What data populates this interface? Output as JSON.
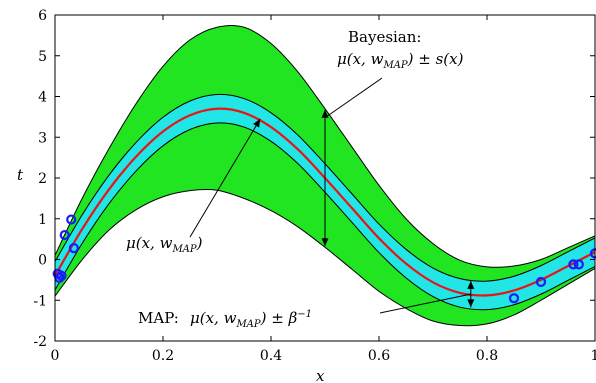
{
  "chart_data": {
    "type": "line",
    "xlabel": "x",
    "ylabel": "t",
    "xlim": [
      0,
      1
    ],
    "ylim": [
      -2,
      6
    ],
    "xticks": [
      0,
      0.2,
      0.4,
      0.6,
      0.8,
      1
    ],
    "xtick_labels": [
      "0",
      "0.2",
      "0.4",
      "0.6",
      "0.8",
      "1"
    ],
    "yticks": [
      -2,
      -1,
      0,
      1,
      2,
      3,
      4,
      5,
      6
    ],
    "ytick_labels": [
      "-2",
      "-1",
      "0",
      "1",
      "2",
      "3",
      "4",
      "5",
      "6"
    ],
    "grid": false,
    "mean_curve": {
      "x": [
        0,
        0.05,
        0.1,
        0.15,
        0.2,
        0.25,
        0.3,
        0.35,
        0.4,
        0.45,
        0.5,
        0.55,
        0.6,
        0.65,
        0.7,
        0.75,
        0.8,
        0.85,
        0.9,
        0.95,
        1
      ],
      "y": [
        -0.4,
        0.74,
        1.72,
        2.52,
        3.14,
        3.54,
        3.7,
        3.6,
        3.25,
        2.7,
        2.0,
        1.26,
        0.52,
        -0.1,
        -0.56,
        -0.82,
        -0.88,
        -0.76,
        -0.5,
        -0.16,
        0.18
      ]
    },
    "map_band_halfwidth": 0.35,
    "bayesian_band_halfwidth": [
      0.5,
      0.75,
      1.0,
      1.3,
      1.6,
      1.85,
      2.0,
      2.1,
      2.05,
      1.9,
      1.7,
      1.5,
      1.3,
      1.1,
      0.95,
      0.8,
      0.7,
      0.6,
      0.5,
      0.45,
      0.4
    ],
    "data_points": {
      "x": [
        0.005,
        0.008,
        0.012,
        0.018,
        0.03,
        0.035,
        0.85,
        0.9,
        0.96,
        0.97,
        1.0
      ],
      "y": [
        -0.35,
        -0.45,
        -0.4,
        0.6,
        0.98,
        0.28,
        -0.95,
        -0.55,
        -0.12,
        -0.12,
        0.15
      ]
    },
    "colors": {
      "bayesian_band": "#22e522",
      "map_band": "#22e5e5",
      "mean_line": "#e8141a",
      "band_edge": "#000000",
      "data_points": "#1a1aff"
    },
    "annotations": {
      "bayesian_title": "Bayesian:",
      "bayesian_formula": "μ(x, w_MAP) ± s(x)",
      "mean_label": "μ(x, w_MAP)",
      "map_prefix": "MAP: ",
      "map_formula": "μ(x, w_MAP) ± β⁻¹"
    }
  }
}
